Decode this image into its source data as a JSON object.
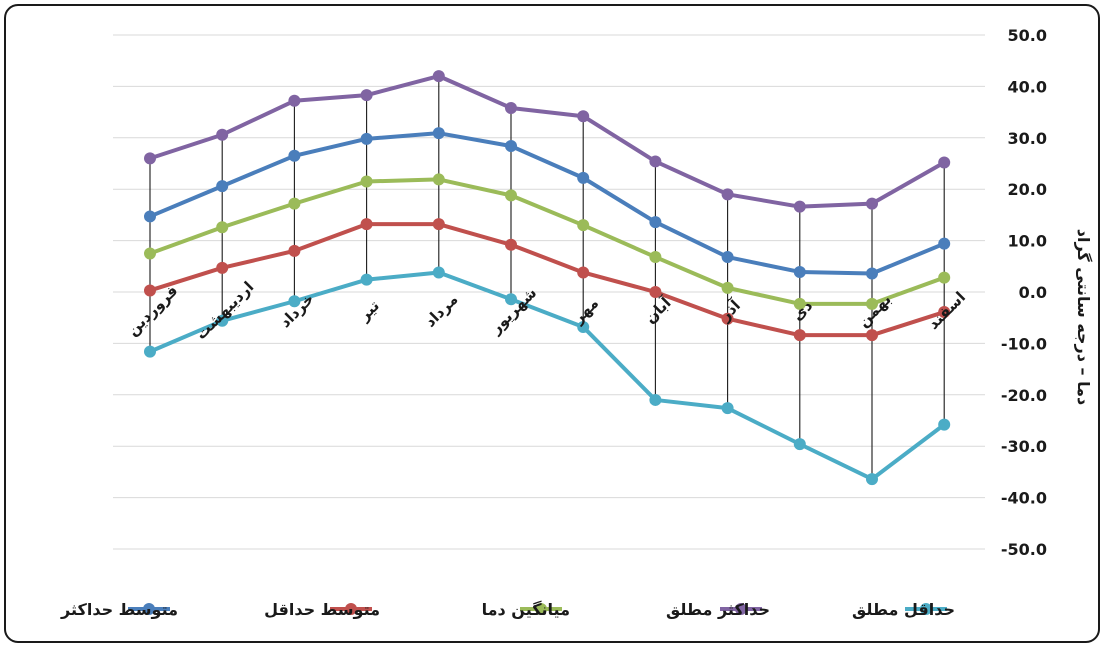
{
  "chart_data": {
    "type": "line",
    "ylabel": "دما – درجه سانتی گراد",
    "ylim": [
      -50,
      50
    ],
    "ytick_step": 10,
    "y_axis_side": "right",
    "grid": true,
    "drop_lines": true,
    "legend_position": "bottom",
    "categories": [
      "فروردین",
      "اردیبهشت",
      "خرداد",
      "تیر",
      "مرداد",
      "شهریور",
      "مهر",
      "آبان",
      "آذر",
      "دی",
      "بهمن",
      "اسفند"
    ],
    "series": [
      {
        "name": "متوسط حداکثر",
        "color": "#4a7ebb",
        "values": [
          14.7,
          20.6,
          26.5,
          29.8,
          30.9,
          28.4,
          22.2,
          13.6,
          6.8,
          3.9,
          3.6,
          9.4
        ]
      },
      {
        "name": "متوسط حداقل",
        "color": "#c0504d",
        "values": [
          0.3,
          4.7,
          8.0,
          13.2,
          13.2,
          9.2,
          3.8,
          0.0,
          -5.2,
          -8.4,
          -8.4,
          -3.9
        ]
      },
      {
        "name": "میانگین دما",
        "color": "#9bbb59",
        "values": [
          7.5,
          12.6,
          17.2,
          21.5,
          21.9,
          18.8,
          13.0,
          6.8,
          0.8,
          -2.3,
          -2.3,
          2.8
        ]
      },
      {
        "name": "حداکثر مطلق",
        "color": "#8064a2",
        "values": [
          26.0,
          30.6,
          37.2,
          38.3,
          42.0,
          35.8,
          34.2,
          25.4,
          19.0,
          16.6,
          17.2,
          25.2
        ]
      },
      {
        "name": "حداقل مطلق",
        "color": "#4bacc6",
        "values": [
          -11.6,
          -5.6,
          -1.8,
          2.4,
          3.8,
          -1.4,
          -6.8,
          -21.0,
          -22.6,
          -29.6,
          -36.4,
          -25.8
        ]
      }
    ]
  }
}
